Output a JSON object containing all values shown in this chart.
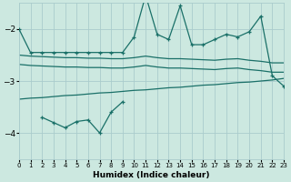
{
  "xlabel": "Humidex (Indice chaleur)",
  "bg_color": "#cce8e0",
  "grid_color": "#aacccc",
  "line_color": "#1a7068",
  "xlim": [
    0,
    23
  ],
  "ylim": [
    -4.5,
    -1.5
  ],
  "yticks": [
    -4,
    -3,
    -2
  ],
  "xticks": [
    0,
    1,
    2,
    3,
    4,
    5,
    6,
    7,
    8,
    9,
    10,
    11,
    12,
    13,
    14,
    15,
    16,
    17,
    18,
    19,
    20,
    21,
    22,
    23
  ],
  "s1x": [
    0,
    1,
    2,
    3,
    4,
    5,
    6,
    7,
    8,
    9,
    10,
    11,
    12,
    13,
    14,
    15,
    16,
    17,
    18,
    19,
    20,
    21,
    22,
    23
  ],
  "s1y": [
    -2.0,
    -2.45,
    -2.45,
    -2.45,
    -2.45,
    -2.45,
    -2.45,
    -2.45,
    -2.45,
    -2.45,
    -2.15,
    -1.35,
    -2.1,
    -2.2,
    -1.55,
    -2.3,
    -2.3,
    -2.2,
    -2.1,
    -2.15,
    -2.05,
    -1.75,
    -2.9,
    -3.1
  ],
  "s2x": [
    0,
    1,
    2,
    3,
    4,
    5,
    6,
    7,
    8,
    9,
    10,
    11,
    12,
    13,
    14,
    15,
    16,
    17,
    18,
    19,
    20,
    21,
    22,
    23
  ],
  "s2y": [
    -2.5,
    -2.52,
    -2.53,
    -2.54,
    -2.55,
    -2.55,
    -2.56,
    -2.56,
    -2.57,
    -2.57,
    -2.55,
    -2.52,
    -2.55,
    -2.57,
    -2.57,
    -2.58,
    -2.59,
    -2.6,
    -2.58,
    -2.57,
    -2.6,
    -2.62,
    -2.65,
    -2.65
  ],
  "s3x": [
    0,
    1,
    2,
    3,
    4,
    5,
    6,
    7,
    8,
    9,
    10,
    11,
    12,
    13,
    14,
    15,
    16,
    17,
    18,
    19,
    20,
    21,
    22,
    23
  ],
  "s3y": [
    -2.68,
    -2.7,
    -2.71,
    -2.72,
    -2.73,
    -2.73,
    -2.74,
    -2.74,
    -2.75,
    -2.75,
    -2.73,
    -2.7,
    -2.73,
    -2.75,
    -2.75,
    -2.76,
    -2.77,
    -2.78,
    -2.76,
    -2.75,
    -2.78,
    -2.8,
    -2.83,
    -2.83
  ],
  "s4x": [
    0,
    1,
    2,
    3,
    4,
    5,
    6,
    7,
    8,
    9,
    10,
    11,
    12,
    13,
    14,
    15,
    16,
    17,
    18,
    19,
    20,
    21,
    22,
    23
  ],
  "s4y": [
    -3.35,
    -3.33,
    -3.32,
    -3.3,
    -3.28,
    -3.27,
    -3.25,
    -3.23,
    -3.22,
    -3.2,
    -3.18,
    -3.17,
    -3.15,
    -3.13,
    -3.12,
    -3.1,
    -3.08,
    -3.07,
    -3.05,
    -3.03,
    -3.02,
    -3.0,
    -2.98,
    -2.95
  ],
  "s5x": [
    2,
    3,
    4,
    5,
    6,
    7,
    8,
    9
  ],
  "s5y": [
    -3.7,
    -3.8,
    -3.9,
    -3.78,
    -3.75,
    -4.0,
    -3.6,
    -3.4
  ]
}
